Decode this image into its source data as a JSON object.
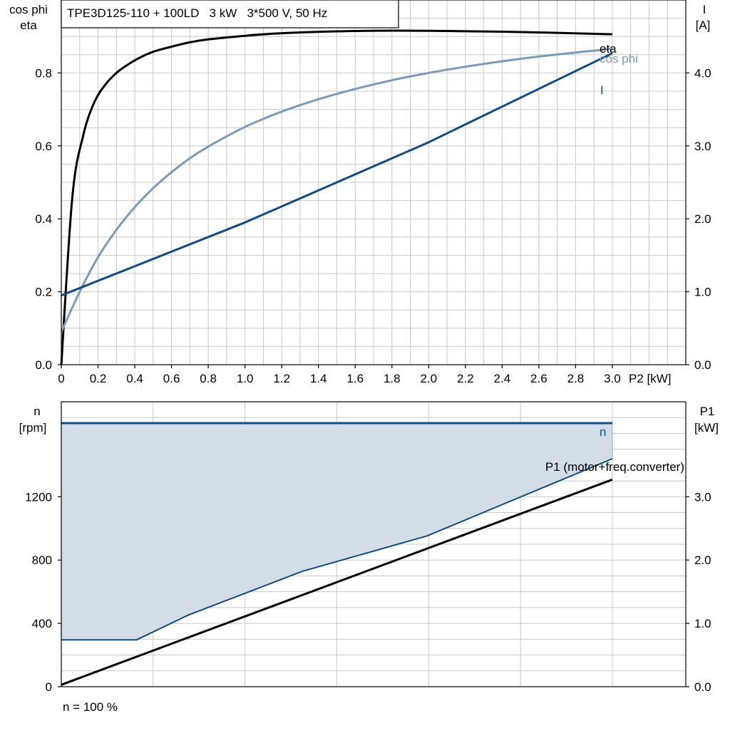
{
  "note": "n = 100 %",
  "colors": {
    "eta": "#000000",
    "cos_phi": "#7b9cb9",
    "current": "#124b80",
    "p1": "#000000",
    "n": "#124b80",
    "p1_fill": "#d2dde8"
  },
  "chart_data": [
    {
      "type": "line",
      "title": "TPE3D125-110 + 100LD   3 kW   3*500 V, 50 Hz",
      "left_axis_label": [
        "cos phi",
        "eta"
      ],
      "right_axis_label": [
        "I",
        "[A]"
      ],
      "xlabel": "P2 [kW]",
      "xlim": [
        0,
        3.4
      ],
      "ylim": [
        0,
        1.0
      ],
      "y2lim": [
        0,
        5.0
      ],
      "grid": true,
      "x_ticks": [
        "0",
        "0.2",
        "0.4",
        "0.6",
        "0.8",
        "1.0",
        "1.2",
        "1.4",
        "1.6",
        "1.8",
        "2.0",
        "2.2",
        "2.4",
        "2.6",
        "2.8",
        "3.0"
      ],
      "y_ticks": [
        "0.0",
        "0.2",
        "0.4",
        "0.6",
        "0.8"
      ],
      "y2_ticks": [
        "0.0",
        "1.0",
        "2.0",
        "3.0",
        "4.0"
      ],
      "series": [
        {
          "name": "eta",
          "axis": "left",
          "x": [
            0,
            0.06,
            0.12,
            0.18,
            0.24,
            0.3,
            0.36,
            0.42,
            0.5,
            0.6,
            0.7,
            0.8,
            1.0,
            1.2,
            1.5,
            1.8,
            2.1,
            2.4,
            2.7,
            3.0
          ],
          "y": [
            0.0,
            0.46,
            0.63,
            0.72,
            0.768,
            0.8,
            0.822,
            0.84,
            0.858,
            0.872,
            0.884,
            0.892,
            0.902,
            0.909,
            0.914,
            0.916,
            0.915,
            0.913,
            0.91,
            0.906
          ]
        },
        {
          "name": "cos phi",
          "axis": "left",
          "x": [
            0,
            0.1,
            0.2,
            0.3,
            0.4,
            0.5,
            0.6,
            0.7,
            0.8,
            1.0,
            1.2,
            1.4,
            1.6,
            1.8,
            2.0,
            2.2,
            2.4,
            2.6,
            2.8,
            3.0
          ],
          "y": [
            0.09,
            0.2,
            0.295,
            0.37,
            0.432,
            0.484,
            0.528,
            0.566,
            0.598,
            0.652,
            0.694,
            0.728,
            0.756,
            0.78,
            0.8,
            0.817,
            0.832,
            0.845,
            0.856,
            0.866
          ]
        },
        {
          "name": "I",
          "axis": "right",
          "x": [
            0,
            0.5,
            1.0,
            1.5,
            2.0,
            2.5,
            3.0
          ],
          "y": [
            0.95,
            1.45,
            1.95,
            2.5,
            3.05,
            3.66,
            4.27
          ]
        }
      ]
    },
    {
      "type": "area",
      "left_axis_label": [
        "n",
        "[rpm]"
      ],
      "right_axis_label": [
        "P1",
        "[kW]"
      ],
      "xlim": [
        0,
        3.4
      ],
      "ylim": [
        0,
        1800
      ],
      "y2lim": [
        0,
        4.5
      ],
      "grid": true,
      "y_ticks": [
        "0",
        "400",
        "800",
        "1200"
      ],
      "y2_ticks": [
        "0.0",
        "1.0",
        "2.0",
        "3.0"
      ],
      "series": [
        {
          "name": "n",
          "axis": "left",
          "x": [
            0,
            3.0
          ],
          "y": [
            1665,
            1665
          ]
        },
        {
          "name": "P1 (motor+freq.converter)",
          "axis": "right",
          "x": [
            0,
            3.0
          ],
          "y": [
            0.03,
            3.27
          ]
        },
        {
          "name": "",
          "role": "lower-boundary",
          "axis": "right",
          "x": [
            0,
            0.41,
            0.69,
            1.31,
            1.99,
            3.0
          ],
          "y": [
            0.74,
            0.74,
            1.13,
            1.82,
            2.38,
            3.6
          ]
        }
      ]
    }
  ]
}
